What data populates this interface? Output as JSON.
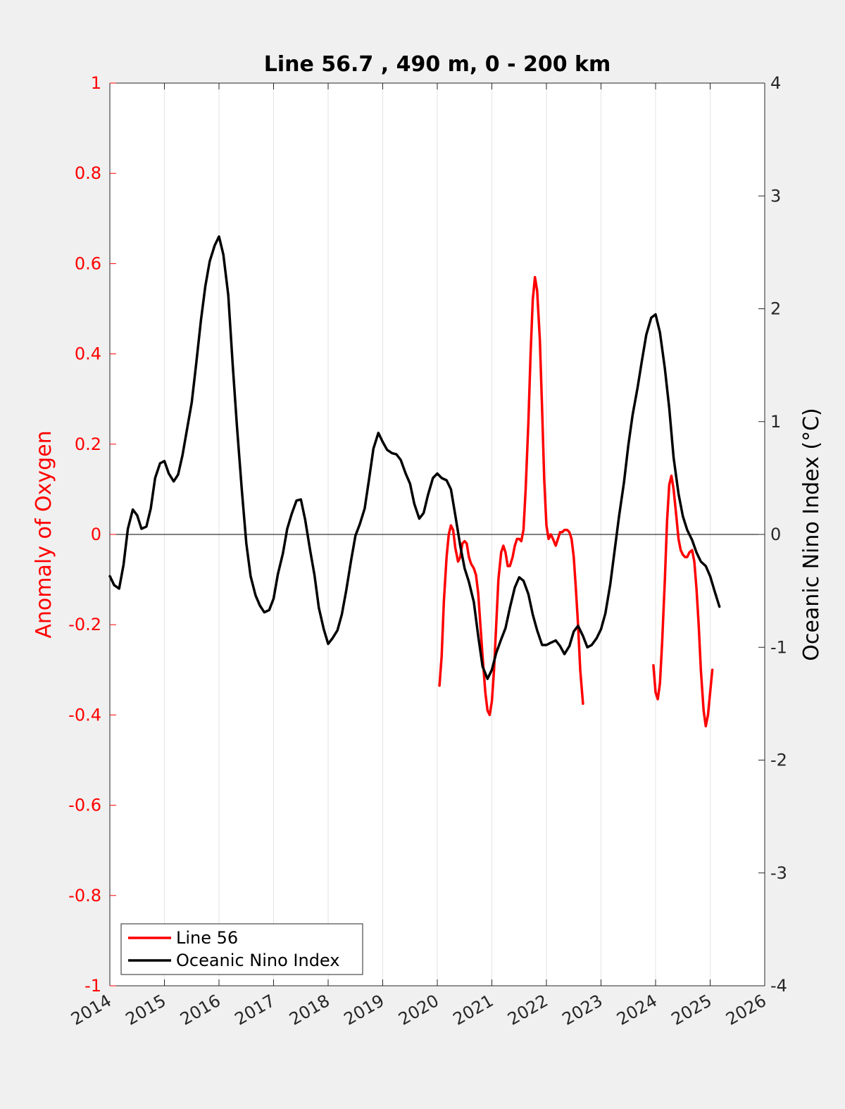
{
  "chart_data": {
    "type": "line",
    "title": "Line 56.7 , 490 m, 0 - 200 km",
    "ylabel_left": "Anomaly of Oxygen",
    "ylabel_right": "Oceanic Nino Index (°C)",
    "xlim": [
      2014,
      2026
    ],
    "ylim_left": [
      -1,
      1
    ],
    "ylim_right": [
      -4,
      4
    ],
    "xticks": [
      "2014",
      "2015",
      "2016",
      "2017",
      "2018",
      "2019",
      "2020",
      "2021",
      "2022",
      "2023",
      "2024",
      "2025",
      "2026"
    ],
    "yticks_left": [
      "1",
      "0.8",
      "0.6",
      "0.4",
      "0.2",
      "0",
      "-0.2",
      "-0.4",
      "-0.6",
      "-0.8",
      "-1"
    ],
    "yticks_right": [
      "4",
      "3",
      "2",
      "1",
      "0",
      "-1",
      "-2",
      "-3",
      "-4"
    ],
    "grid": "vertical",
    "legend_position": "bottom-left",
    "colors": {
      "line56": "#ff0000",
      "oni": "#000000",
      "left_axis": "#ff0000"
    },
    "series": [
      {
        "name": "Line 56",
        "axis": "left",
        "color": "#ff0000",
        "segments": [
          [
            [
              2020.04,
              -0.335
            ],
            [
              2020.08,
              -0.27
            ],
            [
              2020.12,
              -0.15
            ],
            [
              2020.17,
              -0.05
            ],
            [
              2020.21,
              0.0
            ],
            [
              2020.25,
              0.02
            ],
            [
              2020.29,
              0.01
            ],
            [
              2020.33,
              -0.03
            ],
            [
              2020.38,
              -0.06
            ],
            [
              2020.42,
              -0.05
            ],
            [
              2020.46,
              -0.02
            ],
            [
              2020.5,
              -0.015
            ],
            [
              2020.54,
              -0.02
            ],
            [
              2020.58,
              -0.05
            ],
            [
              2020.62,
              -0.065
            ],
            [
              2020.67,
              -0.075
            ],
            [
              2020.71,
              -0.09
            ],
            [
              2020.75,
              -0.13
            ],
            [
              2020.79,
              -0.2
            ],
            [
              2020.83,
              -0.27
            ],
            [
              2020.88,
              -0.35
            ],
            [
              2020.92,
              -0.39
            ],
            [
              2020.96,
              -0.4
            ],
            [
              2021.0,
              -0.37
            ],
            [
              2021.04,
              -0.3
            ],
            [
              2021.08,
              -0.2
            ],
            [
              2021.12,
              -0.1
            ],
            [
              2021.17,
              -0.04
            ],
            [
              2021.21,
              -0.025
            ],
            [
              2021.25,
              -0.04
            ],
            [
              2021.29,
              -0.07
            ],
            [
              2021.33,
              -0.07
            ],
            [
              2021.38,
              -0.05
            ],
            [
              2021.42,
              -0.025
            ],
            [
              2021.46,
              -0.01
            ],
            [
              2021.5,
              -0.01
            ],
            [
              2021.54,
              -0.015
            ],
            [
              2021.58,
              0.01
            ],
            [
              2021.62,
              0.1
            ],
            [
              2021.67,
              0.25
            ],
            [
              2021.71,
              0.4
            ],
            [
              2021.75,
              0.52
            ],
            [
              2021.79,
              0.57
            ],
            [
              2021.83,
              0.54
            ],
            [
              2021.88,
              0.43
            ],
            [
              2021.92,
              0.28
            ],
            [
              2021.96,
              0.12
            ],
            [
              2022.0,
              0.02
            ],
            [
              2022.04,
              -0.01
            ],
            [
              2022.08,
              0.0
            ],
            [
              2022.12,
              -0.01
            ],
            [
              2022.17,
              -0.025
            ],
            [
              2022.21,
              -0.01
            ],
            [
              2022.25,
              0.005
            ],
            [
              2022.29,
              0.005
            ],
            [
              2022.33,
              0.01
            ],
            [
              2022.38,
              0.01
            ],
            [
              2022.42,
              0.005
            ],
            [
              2022.46,
              -0.01
            ],
            [
              2022.5,
              -0.05
            ],
            [
              2022.54,
              -0.12
            ],
            [
              2022.58,
              -0.2
            ],
            [
              2022.62,
              -0.3
            ],
            [
              2022.67,
              -0.375
            ]
          ],
          [
            [
              2023.96,
              -0.29
            ],
            [
              2024.0,
              -0.35
            ],
            [
              2024.04,
              -0.365
            ],
            [
              2024.08,
              -0.33
            ],
            [
              2024.12,
              -0.24
            ],
            [
              2024.17,
              -0.1
            ],
            [
              2024.21,
              0.03
            ],
            [
              2024.25,
              0.11
            ],
            [
              2024.29,
              0.13
            ],
            [
              2024.33,
              0.1
            ],
            [
              2024.38,
              0.04
            ],
            [
              2024.42,
              -0.01
            ],
            [
              2024.46,
              -0.035
            ],
            [
              2024.5,
              -0.045
            ],
            [
              2024.54,
              -0.05
            ],
            [
              2024.58,
              -0.05
            ],
            [
              2024.62,
              -0.04
            ],
            [
              2024.67,
              -0.035
            ],
            [
              2024.71,
              -0.06
            ],
            [
              2024.75,
              -0.12
            ],
            [
              2024.79,
              -0.2
            ],
            [
              2024.83,
              -0.3
            ],
            [
              2024.88,
              -0.39
            ],
            [
              2024.92,
              -0.425
            ],
            [
              2024.96,
              -0.4
            ],
            [
              2025.0,
              -0.35
            ],
            [
              2025.04,
              -0.3
            ]
          ]
        ]
      },
      {
        "name": "Oceanic Nino Index",
        "axis": "right",
        "color": "#000000",
        "segments": [
          [
            [
              2014.0,
              -0.37
            ],
            [
              2014.08,
              -0.45
            ],
            [
              2014.17,
              -0.48
            ],
            [
              2014.25,
              -0.27
            ],
            [
              2014.33,
              0.05
            ],
            [
              2014.42,
              0.22
            ],
            [
              2014.5,
              0.17
            ],
            [
              2014.58,
              0.05
            ],
            [
              2014.67,
              0.07
            ],
            [
              2014.75,
              0.23
            ],
            [
              2014.83,
              0.5
            ],
            [
              2014.92,
              0.63
            ],
            [
              2015.0,
              0.65
            ],
            [
              2015.08,
              0.54
            ],
            [
              2015.17,
              0.47
            ],
            [
              2015.25,
              0.53
            ],
            [
              2015.33,
              0.7
            ],
            [
              2015.42,
              0.95
            ],
            [
              2015.5,
              1.17
            ],
            [
              2015.58,
              1.5
            ],
            [
              2015.67,
              1.9
            ],
            [
              2015.75,
              2.2
            ],
            [
              2015.83,
              2.42
            ],
            [
              2015.92,
              2.56
            ],
            [
              2016.0,
              2.64
            ],
            [
              2016.08,
              2.48
            ],
            [
              2016.17,
              2.12
            ],
            [
              2016.25,
              1.51
            ],
            [
              2016.33,
              0.95
            ],
            [
              2016.42,
              0.38
            ],
            [
              2016.5,
              -0.08
            ],
            [
              2016.58,
              -0.37
            ],
            [
              2016.67,
              -0.54
            ],
            [
              2016.75,
              -0.63
            ],
            [
              2016.83,
              -0.69
            ],
            [
              2016.92,
              -0.67
            ],
            [
              2017.0,
              -0.57
            ],
            [
              2017.08,
              -0.35
            ],
            [
              2017.17,
              -0.17
            ],
            [
              2017.25,
              0.05
            ],
            [
              2017.33,
              0.18
            ],
            [
              2017.42,
              0.3
            ],
            [
              2017.5,
              0.31
            ],
            [
              2017.58,
              0.13
            ],
            [
              2017.67,
              -0.14
            ],
            [
              2017.75,
              -0.36
            ],
            [
              2017.83,
              -0.65
            ],
            [
              2017.92,
              -0.84
            ],
            [
              2018.0,
              -0.97
            ],
            [
              2018.08,
              -0.92
            ],
            [
              2018.17,
              -0.85
            ],
            [
              2018.25,
              -0.71
            ],
            [
              2018.33,
              -0.5
            ],
            [
              2018.42,
              -0.23
            ],
            [
              2018.5,
              -0.01
            ],
            [
              2018.58,
              0.09
            ],
            [
              2018.67,
              0.23
            ],
            [
              2018.75,
              0.49
            ],
            [
              2018.83,
              0.76
            ],
            [
              2018.92,
              0.9
            ],
            [
              2019.0,
              0.82
            ],
            [
              2019.08,
              0.75
            ],
            [
              2019.17,
              0.72
            ],
            [
              2019.25,
              0.71
            ],
            [
              2019.33,
              0.66
            ],
            [
              2019.42,
              0.54
            ],
            [
              2019.5,
              0.45
            ],
            [
              2019.58,
              0.27
            ],
            [
              2019.67,
              0.14
            ],
            [
              2019.75,
              0.19
            ],
            [
              2019.83,
              0.35
            ],
            [
              2019.92,
              0.5
            ],
            [
              2020.0,
              0.54
            ],
            [
              2020.08,
              0.5
            ],
            [
              2020.17,
              0.48
            ],
            [
              2020.25,
              0.4
            ],
            [
              2020.33,
              0.17
            ],
            [
              2020.42,
              -0.1
            ],
            [
              2020.5,
              -0.3
            ],
            [
              2020.58,
              -0.42
            ],
            [
              2020.67,
              -0.6
            ],
            [
              2020.75,
              -0.9
            ],
            [
              2020.83,
              -1.17
            ],
            [
              2020.92,
              -1.28
            ],
            [
              2021.0,
              -1.2
            ],
            [
              2021.08,
              -1.05
            ],
            [
              2021.17,
              -0.93
            ],
            [
              2021.25,
              -0.83
            ],
            [
              2021.33,
              -0.65
            ],
            [
              2021.42,
              -0.47
            ],
            [
              2021.5,
              -0.38
            ],
            [
              2021.58,
              -0.41
            ],
            [
              2021.67,
              -0.53
            ],
            [
              2021.75,
              -0.71
            ],
            [
              2021.83,
              -0.85
            ],
            [
              2021.92,
              -0.98
            ],
            [
              2022.0,
              -0.98
            ],
            [
              2022.08,
              -0.96
            ],
            [
              2022.17,
              -0.94
            ],
            [
              2022.25,
              -0.99
            ],
            [
              2022.33,
              -1.06
            ],
            [
              2022.42,
              -0.99
            ],
            [
              2022.5,
              -0.86
            ],
            [
              2022.58,
              -0.81
            ],
            [
              2022.67,
              -0.9
            ],
            [
              2022.75,
              -1.0
            ],
            [
              2022.83,
              -0.98
            ],
            [
              2022.92,
              -0.92
            ],
            [
              2023.0,
              -0.84
            ],
            [
              2023.08,
              -0.7
            ],
            [
              2023.17,
              -0.44
            ],
            [
              2023.25,
              -0.14
            ],
            [
              2023.33,
              0.16
            ],
            [
              2023.42,
              0.46
            ],
            [
              2023.5,
              0.79
            ],
            [
              2023.58,
              1.06
            ],
            [
              2023.67,
              1.3
            ],
            [
              2023.75,
              1.54
            ],
            [
              2023.83,
              1.77
            ],
            [
              2023.92,
              1.92
            ],
            [
              2024.0,
              1.95
            ],
            [
              2024.08,
              1.79
            ],
            [
              2024.17,
              1.47
            ],
            [
              2024.25,
              1.12
            ],
            [
              2024.33,
              0.68
            ],
            [
              2024.42,
              0.36
            ],
            [
              2024.5,
              0.16
            ],
            [
              2024.58,
              0.04
            ],
            [
              2024.67,
              -0.05
            ],
            [
              2024.75,
              -0.16
            ],
            [
              2024.83,
              -0.24
            ],
            [
              2024.92,
              -0.28
            ],
            [
              2025.0,
              -0.37
            ],
            [
              2025.08,
              -0.5
            ],
            [
              2025.17,
              -0.64
            ]
          ]
        ]
      }
    ]
  }
}
